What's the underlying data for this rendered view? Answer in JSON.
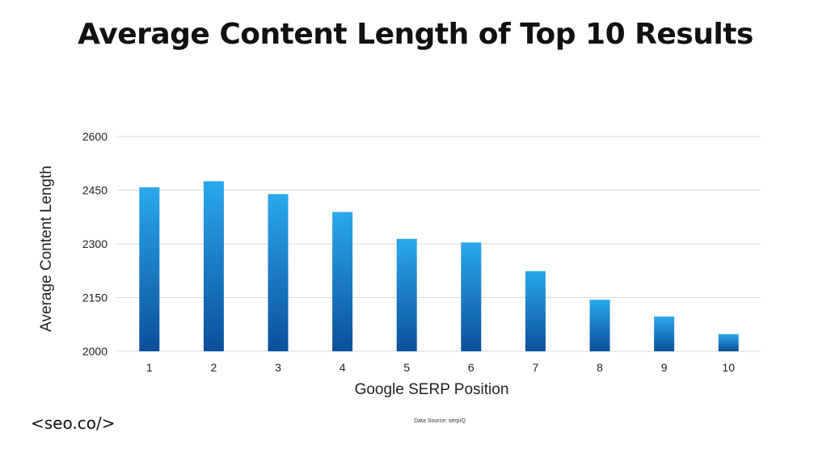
{
  "title": "Average Content Length of Top 10 Results",
  "footer": {
    "brand": "<seo.co/>",
    "source": "Data Source: serpIQ"
  },
  "colors": {
    "bar_top": "#2aa8ec",
    "bar_bottom": "#0b4f9a",
    "grid": "#d9d9d9",
    "text": "#222222"
  },
  "chart_data": {
    "type": "bar",
    "categories": [
      "1",
      "2",
      "3",
      "4",
      "5",
      "6",
      "7",
      "8",
      "9",
      "10"
    ],
    "values": [
      2458,
      2475,
      2439,
      2389,
      2314,
      2304,
      2224,
      2144,
      2097,
      2048
    ],
    "xlabel": "Google SERP Position",
    "ylabel": "Average Content Length",
    "ylim": [
      2000,
      2600
    ],
    "yticks": [
      2000,
      2150,
      2300,
      2450,
      2600
    ],
    "grid": true,
    "legend": "none"
  }
}
